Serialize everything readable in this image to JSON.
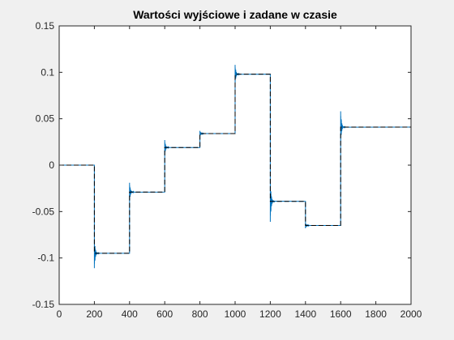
{
  "chart_data": {
    "type": "line",
    "title": "Wartości wyjściowe i zadane w czasie",
    "xlabel": "",
    "ylabel": "",
    "xlim": [
      0,
      2000
    ],
    "ylim": [
      -0.15,
      0.15
    ],
    "x_ticks": [
      0,
      200,
      400,
      600,
      800,
      1000,
      1200,
      1400,
      1600,
      1800,
      2000
    ],
    "x_tick_labels": [
      "0",
      "200",
      "400",
      "600",
      "800",
      "1000",
      "1200",
      "1400",
      "1600",
      "1800",
      "2000"
    ],
    "y_ticks": [
      -0.15,
      -0.1,
      -0.05,
      0,
      0.05,
      0.1,
      0.15
    ],
    "y_tick_labels": [
      "-0.15",
      "-0.1",
      "-0.05",
      "0",
      "0.05",
      "0.1",
      "0.15"
    ],
    "grid": false,
    "legend": "none",
    "series": [
      {
        "role": "output",
        "style": "solid",
        "color": "#0072bd",
        "step_times": [
          0,
          200,
          400,
          600,
          800,
          1000,
          1200,
          1400,
          1600
        ],
        "step_values": [
          0,
          -0.095,
          -0.029,
          0.019,
          0.034,
          0.098,
          -0.039,
          -0.065,
          0.041
        ],
        "overshoot_peaks": [
          0,
          -0.111,
          -0.019,
          0.027,
          0.037,
          0.108,
          -0.061,
          -0.068,
          0.058
        ]
      },
      {
        "role": "setpoint",
        "style": "dashed",
        "color": "#000000",
        "step_times": [
          0,
          200,
          400,
          600,
          800,
          1000,
          1200,
          1400,
          1600
        ],
        "step_values": [
          0,
          -0.095,
          -0.029,
          0.019,
          0.034,
          0.098,
          -0.039,
          -0.065,
          0.041
        ]
      }
    ]
  }
}
